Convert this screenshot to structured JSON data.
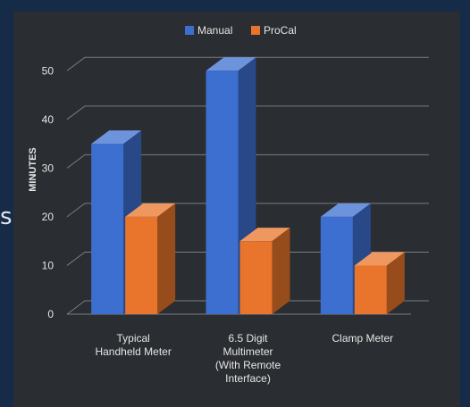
{
  "page": {
    "edge_text": "s",
    "background": "#152b47",
    "panel_color": "#2a2d31"
  },
  "chart_data": {
    "type": "bar",
    "style": "3d-clustered",
    "categories": [
      [
        "Typical",
        "Handheld Meter"
      ],
      [
        "6.5 Digit",
        "Multimeter",
        "(With Remote",
        "Interface)"
      ],
      [
        "Clamp Meter"
      ]
    ],
    "series": [
      {
        "name": "Manual",
        "values": [
          35,
          50,
          20
        ],
        "color": "#3d6fd1"
      },
      {
        "name": "ProCal",
        "values": [
          20,
          15,
          10
        ],
        "color": "#e8752b"
      }
    ],
    "ylabel": "MINUTES",
    "ylim": [
      0,
      55
    ],
    "yticks": [
      0,
      10,
      20,
      30,
      40,
      50
    ],
    "grid": true,
    "legend_position": "top-center",
    "text_color": "#e6e6e6",
    "grid_color": "#7a7d82"
  }
}
